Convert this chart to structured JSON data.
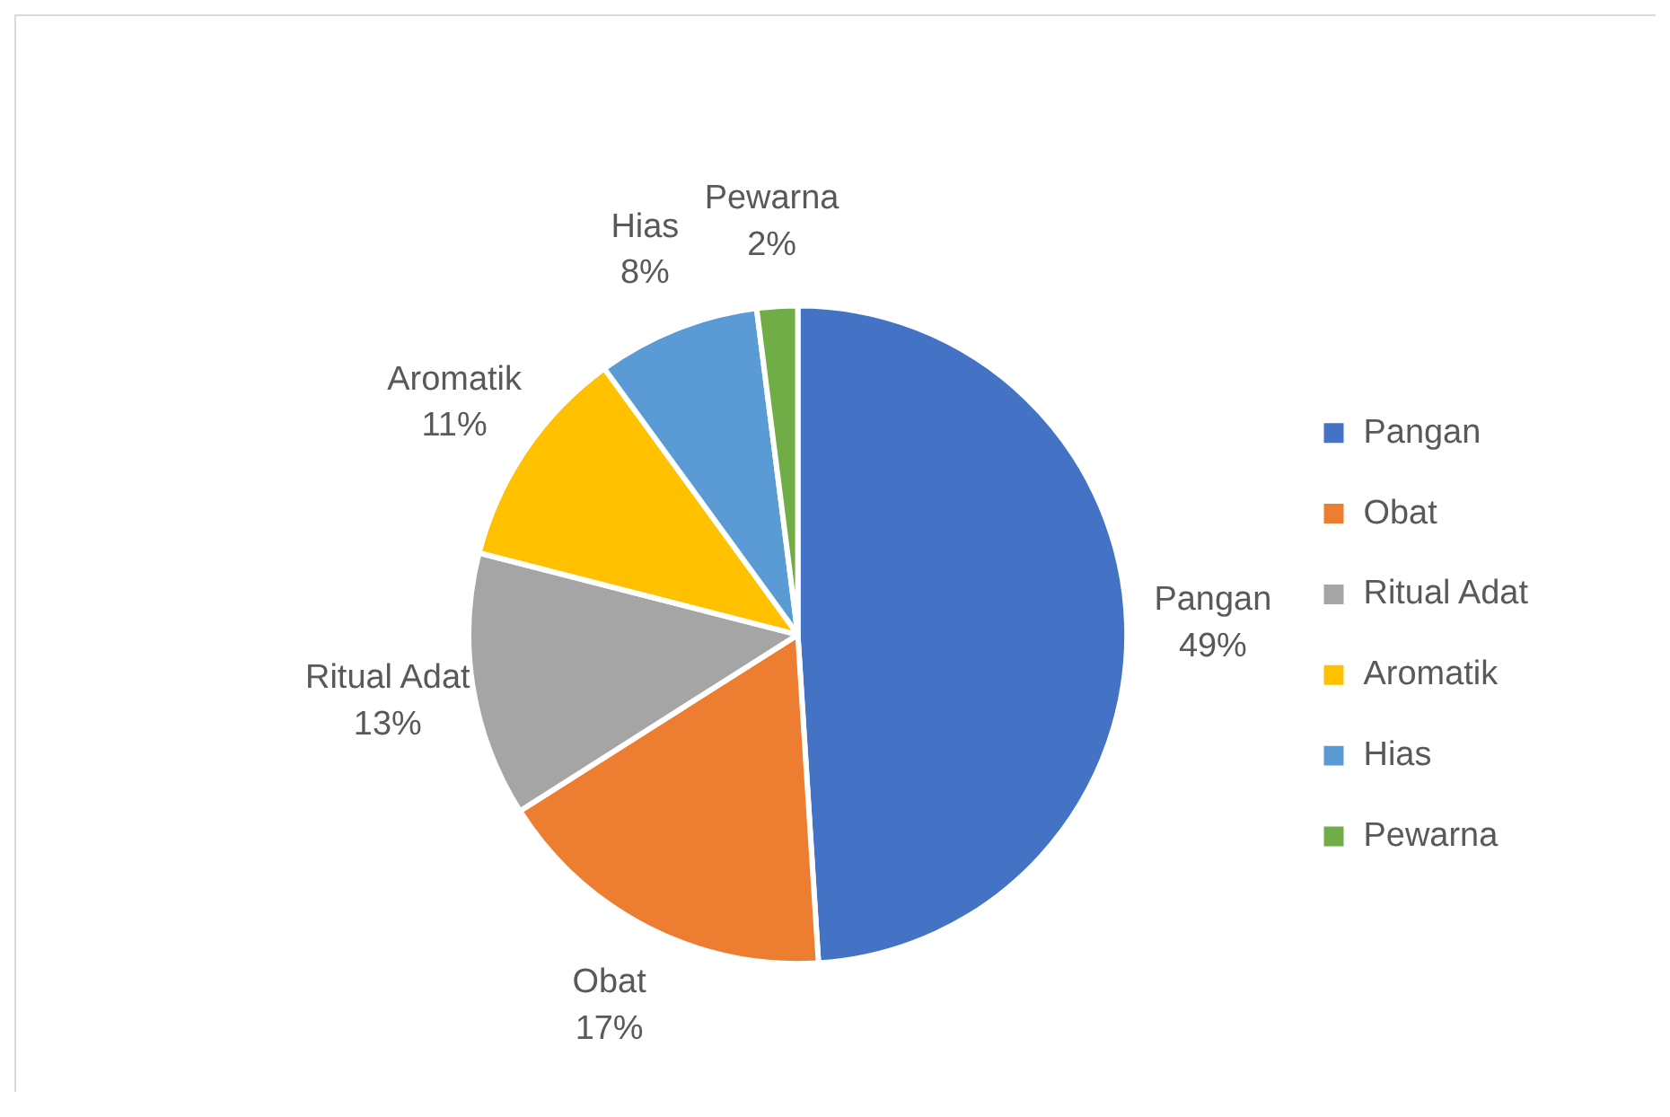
{
  "chart_data": {
    "type": "pie",
    "categories": [
      "Pangan",
      "Obat",
      "Ritual Adat",
      "Aromatik",
      "Hias",
      "Pewarna"
    ],
    "values": [
      49,
      17,
      13,
      11,
      8,
      2
    ],
    "value_labels": [
      "49%",
      "17%",
      "13%",
      "11%",
      "8%",
      "2%"
    ],
    "colors": [
      "#4472c4",
      "#ed7d31",
      "#a5a5a5",
      "#ffc000",
      "#5b9bd5",
      "#70ad47"
    ],
    "legend": "right"
  }
}
